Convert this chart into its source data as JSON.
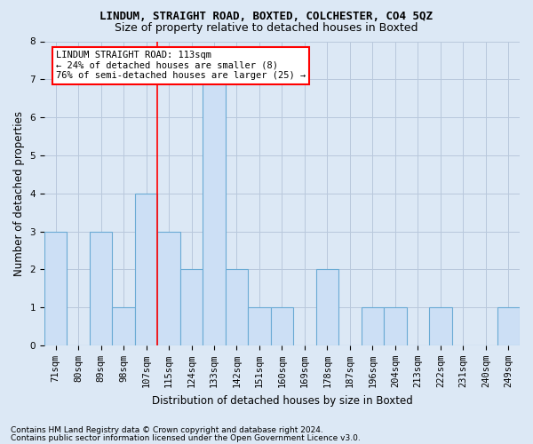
{
  "title": "LINDUM, STRAIGHT ROAD, BOXTED, COLCHESTER, CO4 5QZ",
  "subtitle": "Size of property relative to detached houses in Boxted",
  "xlabel": "Distribution of detached houses by size in Boxted",
  "ylabel": "Number of detached properties",
  "categories": [
    "71sqm",
    "80sqm",
    "89sqm",
    "98sqm",
    "107sqm",
    "115sqm",
    "124sqm",
    "133sqm",
    "142sqm",
    "151sqm",
    "160sqm",
    "169sqm",
    "178sqm",
    "187sqm",
    "196sqm",
    "204sqm",
    "213sqm",
    "222sqm",
    "231sqm",
    "240sqm",
    "249sqm"
  ],
  "values": [
    3,
    0,
    3,
    1,
    4,
    3,
    2,
    7,
    2,
    1,
    1,
    0,
    2,
    0,
    1,
    1,
    0,
    1,
    0,
    0,
    1
  ],
  "bar_color": "#ccdff5",
  "bar_edge_color": "#6aaad4",
  "grid_color": "#b8c8dc",
  "background_color": "#dce8f5",
  "property_line_index": 4.5,
  "annotation_text": "LINDUM STRAIGHT ROAD: 113sqm\n← 24% of detached houses are smaller (8)\n76% of semi-detached houses are larger (25) →",
  "annotation_box_facecolor": "white",
  "annotation_box_edgecolor": "red",
  "footnote1": "Contains HM Land Registry data © Crown copyright and database right 2024.",
  "footnote2": "Contains public sector information licensed under the Open Government Licence v3.0.",
  "ylim": [
    0,
    8
  ],
  "yticks": [
    0,
    1,
    2,
    3,
    4,
    5,
    6,
    7,
    8
  ],
  "title_fontsize": 9,
  "subtitle_fontsize": 9,
  "ylabel_fontsize": 8.5,
  "xlabel_fontsize": 8.5,
  "tick_fontsize": 7.5,
  "annot_fontsize": 7.5,
  "footnote_fontsize": 6.5
}
